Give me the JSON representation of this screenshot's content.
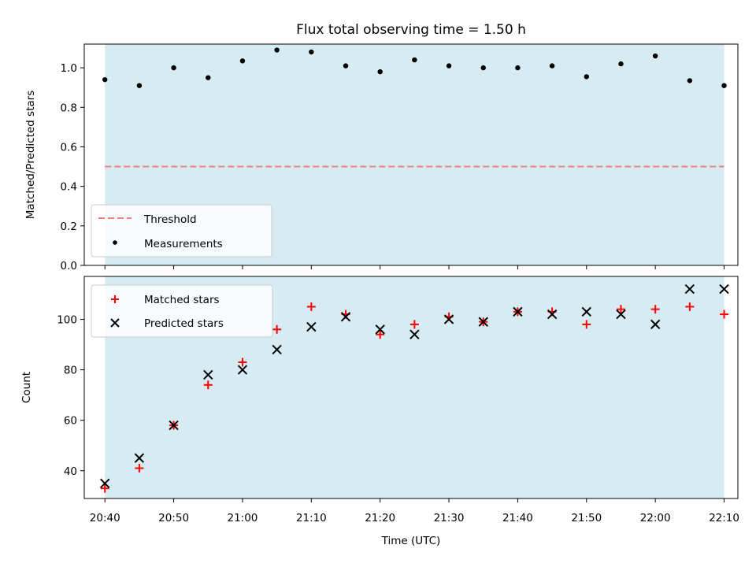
{
  "chart_data": [
    {
      "type": "scatter",
      "title": "Flux total observing time = 1.50 h",
      "xlabel": "",
      "ylabel": "Matched/Predicted stars",
      "ylim": [
        0,
        1.12
      ],
      "yticks": [
        0.0,
        0.2,
        0.4,
        0.6,
        0.8,
        1.0
      ],
      "ytick_labels": [
        "0.0",
        "0.2",
        "0.4",
        "0.6",
        "0.8",
        "1.0"
      ],
      "shaded_span": [
        "20:40",
        "22:10"
      ],
      "threshold": 0.5,
      "legend_position": "lower-left",
      "legend": [
        {
          "label": "Threshold",
          "style": "dashed-line",
          "color": "#f08080"
        },
        {
          "label": "Measurements",
          "style": "dot",
          "color": "#000000"
        }
      ],
      "x": [
        "20:40",
        "20:45",
        "20:50",
        "20:55",
        "21:00",
        "21:05",
        "21:10",
        "21:15",
        "21:20",
        "21:25",
        "21:30",
        "21:35",
        "21:40",
        "21:45",
        "21:50",
        "21:55",
        "22:00",
        "22:05",
        "22:10"
      ],
      "series": [
        {
          "name": "Measurements",
          "values": [
            0.94,
            0.91,
            1.0,
            0.95,
            1.035,
            1.09,
            1.08,
            1.01,
            0.98,
            1.04,
            1.01,
            1.0,
            1.0,
            1.01,
            0.955,
            1.02,
            1.06,
            0.935,
            0.91
          ]
        }
      ]
    },
    {
      "type": "scatter",
      "xlabel": "Time (UTC)",
      "ylabel": "Count",
      "ylim": [
        29,
        117
      ],
      "yticks": [
        40,
        60,
        80,
        100
      ],
      "ytick_labels": [
        "40",
        "60",
        "80",
        "100"
      ],
      "xlim": [
        "20:37",
        "22:12"
      ],
      "xticks": [
        "20:40",
        "20:50",
        "21:00",
        "21:10",
        "21:20",
        "21:30",
        "21:40",
        "21:50",
        "22:00",
        "22:10"
      ],
      "shaded_span": [
        "20:40",
        "22:10"
      ],
      "legend_position": "upper-left",
      "legend": [
        {
          "label": "Matched stars",
          "marker": "+",
          "color": "#ff0000"
        },
        {
          "label": "Predicted stars",
          "marker": "x",
          "color": "#000000"
        }
      ],
      "x": [
        "20:40",
        "20:45",
        "20:50",
        "20:55",
        "21:00",
        "21:05",
        "21:10",
        "21:15",
        "21:20",
        "21:25",
        "21:30",
        "21:35",
        "21:40",
        "21:45",
        "21:50",
        "21:55",
        "22:00",
        "22:05",
        "22:10"
      ],
      "series": [
        {
          "name": "Matched stars",
          "values": [
            33,
            41,
            58,
            74,
            83,
            96,
            105,
            102,
            94,
            98,
            101,
            99,
            103,
            103,
            98,
            104,
            104,
            105,
            102
          ]
        },
        {
          "name": "Predicted stars",
          "values": [
            35,
            45,
            58,
            78,
            80,
            88,
            97,
            101,
            96,
            94,
            100,
            99,
            103,
            102,
            103,
            102,
            98,
            112,
            112
          ]
        }
      ]
    }
  ],
  "colors": {
    "shade": "#add8e6",
    "threshold": "#f08080",
    "matched": "#ff0000",
    "predicted": "#000000",
    "measurement": "#000000"
  }
}
